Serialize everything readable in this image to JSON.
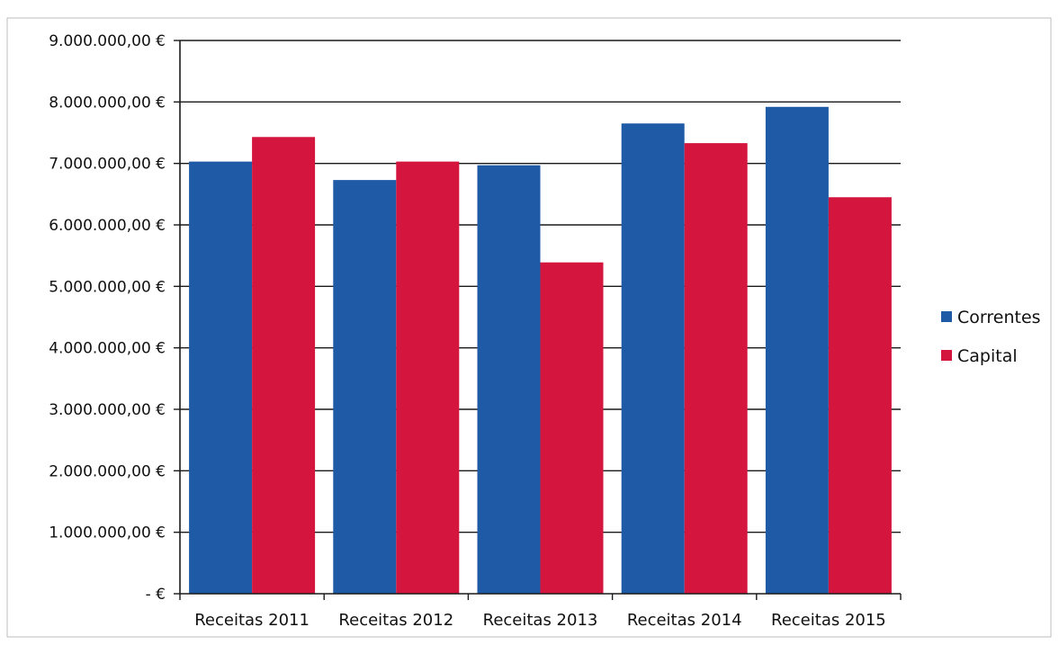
{
  "chart_data": {
    "type": "bar",
    "title": "",
    "xlabel": "",
    "ylabel": "",
    "categories": [
      "Receitas 2011",
      "Receitas 2012",
      "Receitas 2013",
      "Receitas 2014",
      "Receitas 2015"
    ],
    "series": [
      {
        "name": "Correntes",
        "color": "#1f5aa6",
        "values": [
          7030000,
          6730000,
          6970000,
          7650000,
          7920000
        ]
      },
      {
        "name": "Capital",
        "color": "#d4163f",
        "values": [
          7430000,
          7030000,
          5390000,
          7330000,
          6450000
        ]
      }
    ],
    "ylim": [
      0,
      9000000
    ],
    "yticks": [
      0,
      1000000,
      2000000,
      3000000,
      4000000,
      5000000,
      6000000,
      7000000,
      8000000,
      9000000
    ],
    "ytick_labels": [
      "-   €",
      "1.000.000,00 €",
      "2.000.000,00 €",
      "3.000.000,00 €",
      "4.000.000,00 €",
      "5.000.000,00 €",
      "6.000.000,00 €",
      "7.000.000,00 €",
      "8.000.000,00 €",
      "9.000.000,00 €"
    ],
    "grid": true,
    "legend_position": "right"
  }
}
